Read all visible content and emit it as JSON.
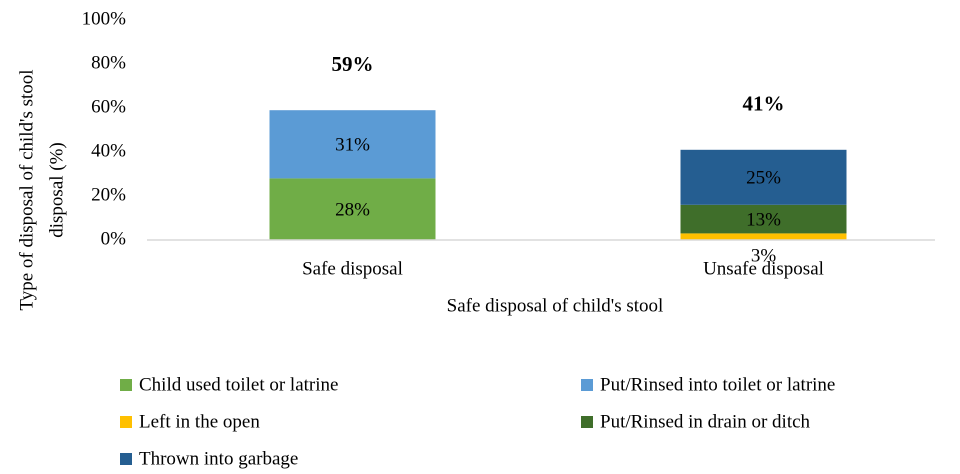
{
  "chart_data": {
    "type": "stacked_bar",
    "xlabel": "Safe disposal of child's stool",
    "ylabel": [
      "Type of disposal of child's stool",
      "disposal (%)"
    ],
    "categories": [
      "Safe disposal",
      "Unsafe disposal"
    ],
    "series": [
      {
        "name": "Child used toilet or latrine",
        "color": "#70ad47",
        "label_color": "#000000",
        "values": [
          28,
          null
        ],
        "value_labels": [
          "28%",
          null
        ]
      },
      {
        "name": "Put/Rinsed into toilet or latrine",
        "color": "#5b9bd5",
        "label_color": "#000000",
        "values": [
          31,
          null
        ],
        "value_labels": [
          "31%",
          null
        ]
      },
      {
        "name": "Left in the open",
        "color": "#ffc000",
        "label_color": "#000000",
        "values": [
          null,
          3
        ],
        "value_labels": [
          null,
          "3%"
        ]
      },
      {
        "name": "Put/Rinsed in drain or ditch",
        "color": "#3f6e2a",
        "label_color": "#ffffff",
        "values": [
          null,
          13
        ],
        "value_labels": [
          null,
          "13%"
        ]
      },
      {
        "name": "Thrown into garbage",
        "color": "#255e91",
        "label_color": "#ffffff",
        "values": [
          null,
          25
        ],
        "value_labels": [
          null,
          "25%"
        ]
      }
    ],
    "totals": [
      59,
      41
    ],
    "total_labels": [
      "59%",
      "41%"
    ],
    "ylim": [
      0,
      100
    ],
    "yticks": [
      {
        "value": 0,
        "label": "0%"
      },
      {
        "value": 20,
        "label": "20%"
      },
      {
        "value": 40,
        "label": "40%"
      },
      {
        "value": 60,
        "label": "60%"
      },
      {
        "value": 80,
        "label": "80%"
      },
      {
        "value": 100,
        "label": "100%"
      }
    ],
    "grid": false,
    "legend": "bottom"
  }
}
